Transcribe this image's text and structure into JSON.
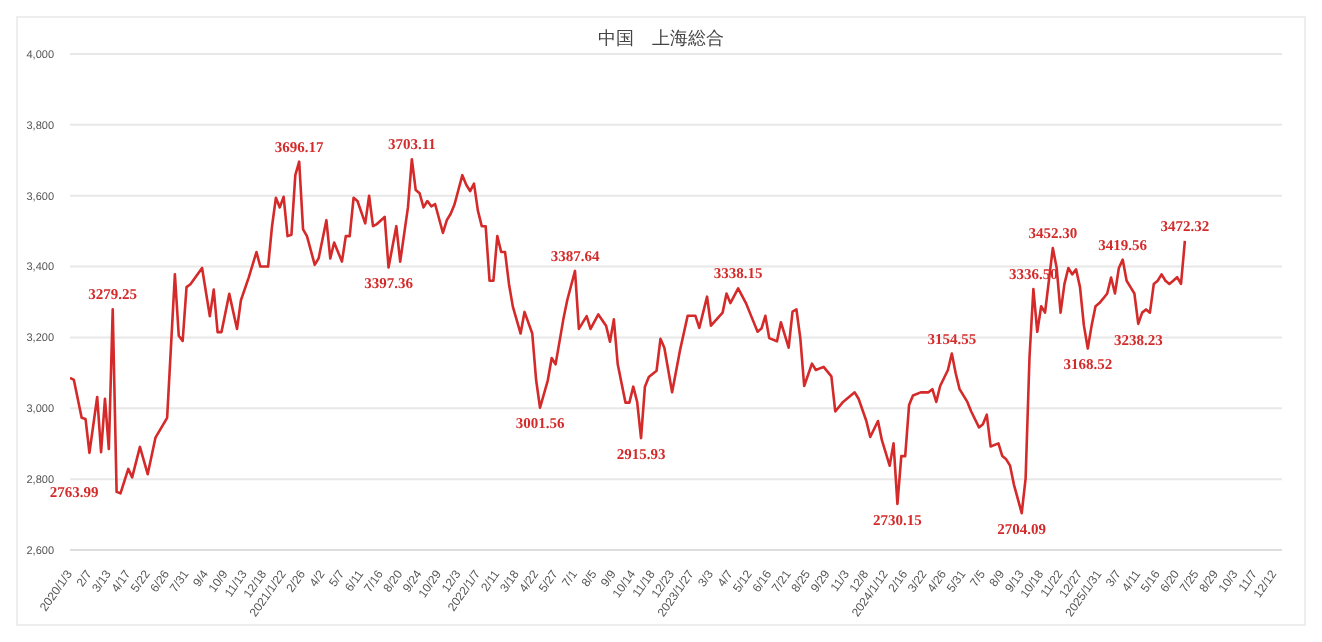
{
  "chart_data": {
    "type": "line",
    "title": "中国　上海総合",
    "series": [
      {
        "color": "#d42a2a",
        "x": [
          "2020-01-03",
          "2020-01-10",
          "2020-01-24",
          "2020-01-31",
          "2020-02-07",
          "2020-02-21",
          "2020-02-28",
          "2020-03-06",
          "2020-03-13",
          "2020-03-20",
          "2020-03-27",
          "2020-04-03",
          "2020-04-17",
          "2020-04-24",
          "2020-05-08",
          "2020-05-22",
          "2020-06-05",
          "2020-06-26",
          "2020-07-10",
          "2020-07-17",
          "2020-07-24",
          "2020-07-31",
          "2020-08-07",
          "2020-08-28",
          "2020-09-11",
          "2020-09-18",
          "2020-09-25",
          "2020-10-02",
          "2020-10-16",
          "2020-10-30",
          "2020-11-06",
          "2020-11-20",
          "2020-12-04",
          "2020-12-11",
          "2020-12-25",
          "2021-01-01",
          "2021-01-08",
          "2021-01-15",
          "2021-01-22",
          "2021-01-29",
          "2021-02-05",
          "2021-02-12",
          "2021-02-19",
          "2021-02-26",
          "2021-03-05",
          "2021-03-19",
          "2021-03-26",
          "2021-04-09",
          "2021-04-16",
          "2021-04-23",
          "2021-05-07",
          "2021-05-14",
          "2021-05-21",
          "2021-05-28",
          "2021-06-04",
          "2021-06-18",
          "2021-06-25",
          "2021-07-02",
          "2021-07-09",
          "2021-07-23",
          "2021-07-30",
          "2021-08-13",
          "2021-08-20",
          "2021-09-03",
          "2021-09-10",
          "2021-09-17",
          "2021-09-24",
          "2021-10-01",
          "2021-10-08",
          "2021-10-15",
          "2021-10-22",
          "2021-11-05",
          "2021-11-12",
          "2021-11-19",
          "2021-11-26",
          "2021-12-10",
          "2021-12-17",
          "2021-12-24",
          "2021-12-31",
          "2022-01-07",
          "2022-01-14",
          "2022-01-21",
          "2022-01-28",
          "2022-02-04",
          "2022-02-11",
          "2022-02-18",
          "2022-02-25",
          "2022-03-04",
          "2022-03-11",
          "2022-03-25",
          "2022-04-01",
          "2022-04-15",
          "2022-04-22",
          "2022-04-29",
          "2022-05-13",
          "2022-05-20",
          "2022-05-27",
          "2022-06-10",
          "2022-06-17",
          "2022-07-01",
          "2022-07-08",
          "2022-07-22",
          "2022-07-29",
          "2022-08-12",
          "2022-08-26",
          "2022-09-02",
          "2022-09-09",
          "2022-09-16",
          "2022-09-23",
          "2022-09-30",
          "2022-10-07",
          "2022-10-14",
          "2022-10-21",
          "2022-10-28",
          "2022-11-04",
          "2022-11-11",
          "2022-11-25",
          "2022-12-02",
          "2022-12-09",
          "2022-12-23",
          "2023-01-06",
          "2023-01-20",
          "2023-02-03",
          "2023-02-10",
          "2023-02-24",
          "2023-03-03",
          "2023-03-24",
          "2023-03-31",
          "2023-04-07",
          "2023-04-21",
          "2023-05-05",
          "2023-05-12",
          "2023-05-26",
          "2023-06-02",
          "2023-06-09",
          "2023-06-16",
          "2023-06-30",
          "2023-07-07",
          "2023-07-21",
          "2023-07-28",
          "2023-08-04",
          "2023-08-11",
          "2023-08-18",
          "2023-09-01",
          "2023-09-08",
          "2023-09-22",
          "2023-10-06",
          "2023-10-13",
          "2023-10-27",
          "2023-11-17",
          "2023-11-24",
          "2023-12-08",
          "2023-12-15",
          "2023-12-29",
          "2024-01-05",
          "2024-01-19",
          "2024-01-26",
          "2024-02-02",
          "2024-02-09",
          "2024-02-16",
          "2024-02-23",
          "2024-03-01",
          "2024-03-15",
          "2024-03-29",
          "2024-04-05",
          "2024-04-12",
          "2024-04-19",
          "2024-05-03",
          "2024-05-10",
          "2024-05-17",
          "2024-05-24",
          "2024-06-07",
          "2024-06-14",
          "2024-06-28",
          "2024-07-05",
          "2024-07-12",
          "2024-07-19",
          "2024-08-02",
          "2024-08-09",
          "2024-08-16",
          "2024-08-23",
          "2024-08-30",
          "2024-09-13",
          "2024-09-20",
          "2024-09-27",
          "2024-10-04",
          "2024-10-11",
          "2024-10-18",
          "2024-10-25",
          "2024-11-08",
          "2024-11-15",
          "2024-11-22",
          "2024-11-29",
          "2024-12-06",
          "2024-12-13",
          "2024-12-20",
          "2024-12-27",
          "2025-01-03",
          "2025-01-10",
          "2025-01-17",
          "2025-01-24",
          "2025-01-31",
          "2025-02-07",
          "2025-02-14",
          "2025-02-21",
          "2025-02-28",
          "2025-03-07",
          "2025-03-14",
          "2025-03-21",
          "2025-03-28",
          "2025-04-04",
          "2025-04-11",
          "2025-04-18",
          "2025-04-25",
          "2025-05-02",
          "2025-05-09",
          "2025-05-16",
          "2025-05-23",
          "2025-05-30",
          "2025-06-06",
          "2025-06-13",
          "2025-06-20",
          "2025-06-27",
          "2025-07-04"
        ],
        "values": [
          3086,
          3080,
          2973,
          2970,
          2874,
          3032,
          2876,
          3027,
          2885,
          3279.25,
          2763.99,
          2760,
          2829,
          2805,
          2891,
          2814,
          2917,
          2973,
          3378,
          3205,
          3190,
          3342,
          3350,
          3396,
          3260,
          3335,
          3215,
          3215,
          3323,
          3224,
          3305,
          3369,
          3441,
          3400,
          3400,
          3513,
          3594,
          3567,
          3597,
          3486,
          3490,
          3658,
          3696.17,
          3505,
          3486,
          3405,
          3423,
          3531,
          3423,
          3468,
          3414,
          3486,
          3486,
          3594,
          3585,
          3522,
          3600,
          3514,
          3520,
          3540,
          3397.36,
          3514,
          3414,
          3567,
          3703.11,
          3616,
          3607,
          3567,
          3585,
          3570,
          3576,
          3495,
          3531,
          3549,
          3576,
          3658,
          3631,
          3613,
          3634,
          3558,
          3514,
          3514,
          3360,
          3360,
          3486,
          3441,
          3441,
          3351,
          3287,
          3211,
          3272,
          3211,
          3079,
          3001.56,
          3079,
          3142,
          3124,
          3251,
          3305,
          3387.64,
          3224,
          3260,
          3224,
          3265,
          3233,
          3188,
          3251,
          3124,
          3070,
          3016,
          3016,
          3061,
          3018,
          2915.93,
          3061,
          3088,
          3106,
          3196,
          3171,
          3045,
          3162,
          3261,
          3261,
          3227,
          3315,
          3233,
          3270,
          3324,
          3297,
          3338.15,
          3297,
          3270,
          3216,
          3225,
          3261,
          3198,
          3189,
          3243,
          3171,
          3273,
          3279,
          3198,
          3063,
          3126,
          3108,
          3117,
          3090,
          2991,
          3018,
          3045,
          3027,
          2964,
          2919,
          2964,
          2910,
          2838,
          2901,
          2730.15,
          2865,
          2865,
          3009,
          3036,
          3045,
          3045,
          3054,
          3018,
          3063,
          3108,
          3154.55,
          3099,
          3054,
          3018,
          2991,
          2946,
          2955,
          2982,
          2892,
          2901,
          2865,
          2856,
          2838,
          2784,
          2704.09,
          2802,
          3144,
          3336.5,
          3216,
          3288,
          3270,
          3452.3,
          3396,
          3270,
          3351,
          3396,
          3378,
          3392,
          3342,
          3234,
          3168.52,
          3234,
          3288,
          3297,
          3310,
          3324,
          3369,
          3324,
          3396,
          3419.56,
          3360,
          3342,
          3324,
          3238.23,
          3270,
          3279,
          3270,
          3351,
          3360,
          3378,
          3360,
          3351,
          3360,
          3370,
          3351,
          3472.32
        ]
      }
    ],
    "xlim": [
      "2020-01-03",
      "2025-12-26"
    ],
    "xticks": [
      {
        "value": "2020-01-03",
        "label": "2020/1/3"
      },
      {
        "value": "2020-02-07",
        "label": "2/7"
      },
      {
        "value": "2020-03-13",
        "label": "3/13"
      },
      {
        "value": "2020-04-17",
        "label": "4/17"
      },
      {
        "value": "2020-05-22",
        "label": "5/22"
      },
      {
        "value": "2020-06-26",
        "label": "6/26"
      },
      {
        "value": "2020-07-31",
        "label": "7/31"
      },
      {
        "value": "2020-09-04",
        "label": "9/4"
      },
      {
        "value": "2020-10-09",
        "label": "10/9"
      },
      {
        "value": "2020-11-13",
        "label": "11/13"
      },
      {
        "value": "2020-12-18",
        "label": "12/18"
      },
      {
        "value": "2021-01-22",
        "label": "2021/1/22"
      },
      {
        "value": "2021-02-26",
        "label": "2/26"
      },
      {
        "value": "2021-04-02",
        "label": "4/2"
      },
      {
        "value": "2021-05-07",
        "label": "5/7"
      },
      {
        "value": "2021-06-11",
        "label": "6/11"
      },
      {
        "value": "2021-07-16",
        "label": "7/16"
      },
      {
        "value": "2021-08-20",
        "label": "8/20"
      },
      {
        "value": "2021-09-24",
        "label": "9/24"
      },
      {
        "value": "2021-10-29",
        "label": "10/29"
      },
      {
        "value": "2021-12-03",
        "label": "12/3"
      },
      {
        "value": "2022-01-07",
        "label": "2022/1/7"
      },
      {
        "value": "2022-02-11",
        "label": "2/11"
      },
      {
        "value": "2022-03-18",
        "label": "3/18"
      },
      {
        "value": "2022-04-22",
        "label": "4/22"
      },
      {
        "value": "2022-05-27",
        "label": "5/27"
      },
      {
        "value": "2022-07-01",
        "label": "7/1"
      },
      {
        "value": "2022-08-05",
        "label": "8/5"
      },
      {
        "value": "2022-09-09",
        "label": "9/9"
      },
      {
        "value": "2022-10-14",
        "label": "10/14"
      },
      {
        "value": "2022-11-18",
        "label": "11/18"
      },
      {
        "value": "2022-12-23",
        "label": "12/23"
      },
      {
        "value": "2023-01-27",
        "label": "2023/1/27"
      },
      {
        "value": "2023-03-03",
        "label": "3/3"
      },
      {
        "value": "2023-04-07",
        "label": "4/7"
      },
      {
        "value": "2023-05-12",
        "label": "5/12"
      },
      {
        "value": "2023-06-16",
        "label": "6/16"
      },
      {
        "value": "2023-07-21",
        "label": "7/21"
      },
      {
        "value": "2023-08-25",
        "label": "8/25"
      },
      {
        "value": "2023-09-29",
        "label": "9/29"
      },
      {
        "value": "2023-11-03",
        "label": "11/3"
      },
      {
        "value": "2023-12-08",
        "label": "12/8"
      },
      {
        "value": "2024-01-12",
        "label": "2024/1/12"
      },
      {
        "value": "2024-02-16",
        "label": "2/16"
      },
      {
        "value": "2024-03-22",
        "label": "3/22"
      },
      {
        "value": "2024-04-26",
        "label": "4/26"
      },
      {
        "value": "2024-05-31",
        "label": "5/31"
      },
      {
        "value": "2024-07-05",
        "label": "7/5"
      },
      {
        "value": "2024-08-09",
        "label": "8/9"
      },
      {
        "value": "2024-09-13",
        "label": "9/13"
      },
      {
        "value": "2024-10-18",
        "label": "10/18"
      },
      {
        "value": "2024-11-22",
        "label": "11/22"
      },
      {
        "value": "2024-12-27",
        "label": "12/27"
      },
      {
        "value": "2025-01-31",
        "label": "2025/1/31"
      },
      {
        "value": "2025-03-07",
        "label": "3/7"
      },
      {
        "value": "2025-04-11",
        "label": "4/11"
      },
      {
        "value": "2025-05-16",
        "label": "5/16"
      },
      {
        "value": "2025-06-20",
        "label": "6/20"
      },
      {
        "value": "2025-07-25",
        "label": "7/25"
      },
      {
        "value": "2025-08-29",
        "label": "8/29"
      },
      {
        "value": "2025-10-03",
        "label": "10/3"
      },
      {
        "value": "2025-11-07",
        "label": "11/7"
      },
      {
        "value": "2025-12-12",
        "label": "12/12"
      }
    ],
    "ylim": [
      2600,
      4000
    ],
    "yticks": [
      {
        "value": 2600,
        "label": "2,600"
      },
      {
        "value": 2800,
        "label": "2,800"
      },
      {
        "value": 3000,
        "label": "3,000"
      },
      {
        "value": 3200,
        "label": "3,200"
      },
      {
        "value": 3400,
        "label": "3,400"
      },
      {
        "value": 3600,
        "label": "3,600"
      },
      {
        "value": 3800,
        "label": "3,800"
      },
      {
        "value": 4000,
        "label": "4,000"
      }
    ],
    "grid": "y",
    "marker": "none",
    "line_style": "solid",
    "annotations": [
      {
        "text": "3279.25",
        "x": "2020-03-20",
        "y": 3279.25
      },
      {
        "text": "2763.99",
        "x": "2020-03-27",
        "y": 2763.99
      },
      {
        "text": "3696.17",
        "x": "2021-02-19",
        "y": 3696.17
      },
      {
        "text": "3397.36",
        "x": "2021-07-30",
        "y": 3397.36
      },
      {
        "text": "3703.11",
        "x": "2021-09-10",
        "y": 3703.11
      },
      {
        "text": "3001.56",
        "x": "2022-04-29",
        "y": 3001.56
      },
      {
        "text": "3387.64",
        "x": "2022-07-01",
        "y": 3387.64
      },
      {
        "text": "2915.93",
        "x": "2022-10-28",
        "y": 2915.93
      },
      {
        "text": "3338.15",
        "x": "2023-04-21",
        "y": 3338.15
      },
      {
        "text": "2730.15",
        "x": "2024-02-02",
        "y": 2730.15
      },
      {
        "text": "3154.55",
        "x": "2024-05-10",
        "y": 3154.55
      },
      {
        "text": "2704.09",
        "x": "2024-09-13",
        "y": 2704.09
      },
      {
        "text": "3336.50",
        "x": "2024-10-04",
        "y": 3336.5
      },
      {
        "text": "3452.30",
        "x": "2024-11-08",
        "y": 3452.3
      },
      {
        "text": "3168.52",
        "x": "2025-01-10",
        "y": 3168.52
      },
      {
        "text": "3419.56",
        "x": "2025-03-14",
        "y": 3419.56
      },
      {
        "text": "3238.23",
        "x": "2025-04-11",
        "y": 3238.23
      },
      {
        "text": "3472.32",
        "x": "2025-07-04",
        "y": 3472.32
      }
    ]
  }
}
